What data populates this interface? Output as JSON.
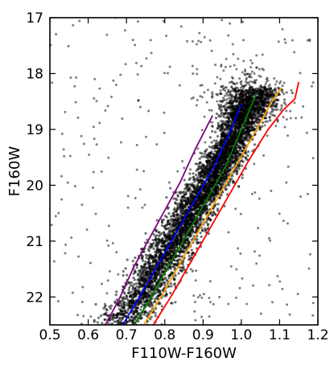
{
  "chart_data": {
    "type": "scatter",
    "title": "",
    "xlabel": "F110W-F160W",
    "ylabel": "F160W",
    "xlim": [
      0.5,
      1.2
    ],
    "ylim": [
      22.5,
      17.0
    ],
    "y_axis_inverted": true,
    "grid": false,
    "legend": "none",
    "x_ticks": [
      "0.5",
      "0.6",
      "0.7",
      "0.8",
      "0.9",
      "1.0",
      "1.1",
      "1.2"
    ],
    "y_ticks": [
      "17",
      "18",
      "19",
      "20",
      "21",
      "22"
    ],
    "scatter": {
      "color": "#000000",
      "approx_point_count": 5000,
      "description_points": "dense stellar main sequence from about (0.65, 22.5) to about (1.05, 18.3), plus scattered field points",
      "ridge": [
        {
          "x": 0.69,
          "y": 22.4
        },
        {
          "x": 0.74,
          "y": 22.0
        },
        {
          "x": 0.8,
          "y": 21.3
        },
        {
          "x": 0.86,
          "y": 20.6
        },
        {
          "x": 0.92,
          "y": 19.9
        },
        {
          "x": 0.97,
          "y": 19.3
        },
        {
          "x": 1.01,
          "y": 18.7
        },
        {
          "x": 1.04,
          "y": 18.35
        }
      ],
      "ridge_width": [
        0.095,
        0.085,
        0.08,
        0.075,
        0.07,
        0.065,
        0.07,
        0.09
      ]
    },
    "series": [
      {
        "color": "#800080",
        "x": [
          0.645,
          0.68,
          0.72,
          0.76,
          0.8,
          0.84,
          0.88,
          0.925
        ],
        "y": [
          22.5,
          22.05,
          21.45,
          20.95,
          20.45,
          19.95,
          19.35,
          18.75
        ]
      },
      {
        "color": "#0000ff",
        "x": [
          0.69,
          0.73,
          0.78,
          0.83,
          0.88,
          0.93,
          0.97,
          1.0
        ],
        "y": [
          22.5,
          22.05,
          21.45,
          20.85,
          20.25,
          19.65,
          19.05,
          18.55
        ]
      },
      {
        "color": "#008000",
        "x": [
          0.72,
          0.76,
          0.81,
          0.86,
          0.91,
          0.96,
          1.0,
          1.04
        ],
        "y": [
          22.5,
          22.05,
          21.45,
          20.85,
          20.25,
          19.65,
          19.0,
          18.35
        ]
      },
      {
        "color": "#ffa500",
        "x": [
          0.745,
          0.79,
          0.84,
          0.89,
          0.94,
          0.99,
          1.04,
          1.08,
          1.105
        ],
        "y": [
          22.5,
          22.0,
          21.4,
          20.8,
          20.2,
          19.6,
          19.0,
          18.5,
          18.25
        ]
      },
      {
        "color": "#ff0000",
        "x": [
          0.77,
          0.82,
          0.87,
          0.92,
          0.97,
          1.02,
          1.07,
          1.11,
          1.14,
          1.15
        ],
        "y": [
          22.5,
          21.95,
          21.35,
          20.75,
          20.15,
          19.55,
          19.0,
          18.65,
          18.45,
          18.15
        ]
      }
    ]
  }
}
